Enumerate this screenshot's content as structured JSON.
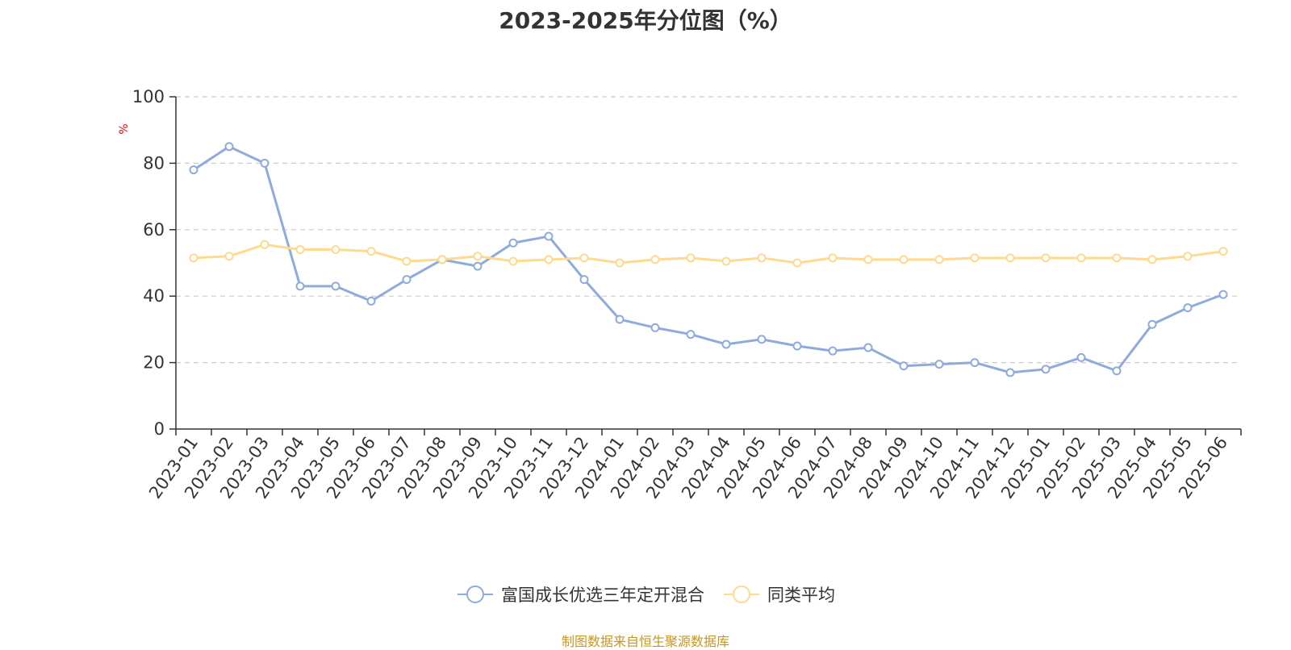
{
  "chart_data": {
    "type": "line",
    "title": "2023-2025年分位图（%）",
    "ylabel": "%",
    "xlabel": "",
    "ylim": [
      0,
      100
    ],
    "yticks": [
      0,
      20,
      40,
      60,
      80,
      100
    ],
    "grid": true,
    "legend_position": "bottom",
    "categories": [
      "2023-01",
      "2023-02",
      "2023-03",
      "2023-04",
      "2023-05",
      "2023-06",
      "2023-07",
      "2023-08",
      "2023-09",
      "2023-10",
      "2023-11",
      "2023-12",
      "2024-01",
      "2024-02",
      "2024-03",
      "2024-04",
      "2024-05",
      "2024-06",
      "2024-07",
      "2024-08",
      "2024-09",
      "2024-10",
      "2024-11",
      "2024-12",
      "2025-01",
      "2025-02",
      "2025-03",
      "2025-04",
      "2025-05",
      "2025-06"
    ],
    "series": [
      {
        "name": "富国成长优选三年定开混合",
        "color": "#8faadc",
        "values": [
          78.0,
          85.0,
          80.0,
          43.0,
          43.0,
          38.5,
          45.0,
          51.0,
          49.0,
          56.0,
          58.0,
          45.0,
          33.0,
          30.5,
          28.5,
          25.5,
          27.0,
          25.0,
          23.5,
          24.5,
          19.0,
          19.5,
          20.0,
          17.0,
          18.0,
          21.5,
          17.5,
          31.5,
          36.5,
          40.5
        ]
      },
      {
        "name": "同类平均",
        "color": "#ffd98e",
        "values": [
          51.5,
          52.0,
          55.5,
          54.0,
          54.0,
          53.5,
          50.5,
          51.0,
          52.0,
          50.5,
          51.0,
          51.5,
          50.0,
          51.0,
          51.5,
          50.5,
          51.5,
          50.0,
          51.5,
          51.0,
          51.0,
          51.0,
          51.5,
          51.5,
          51.5,
          51.5,
          51.5,
          51.0,
          52.0,
          53.5
        ]
      }
    ]
  },
  "legend": {
    "items": [
      "富国成长优选三年定开混合",
      "同类平均"
    ]
  },
  "footer": {
    "source": "制图数据来自恒生聚源数据库"
  },
  "colors": {
    "axis": "#333333",
    "grid": "#cccccc",
    "ylabel": "#ff0000",
    "source": "#c8961e"
  }
}
